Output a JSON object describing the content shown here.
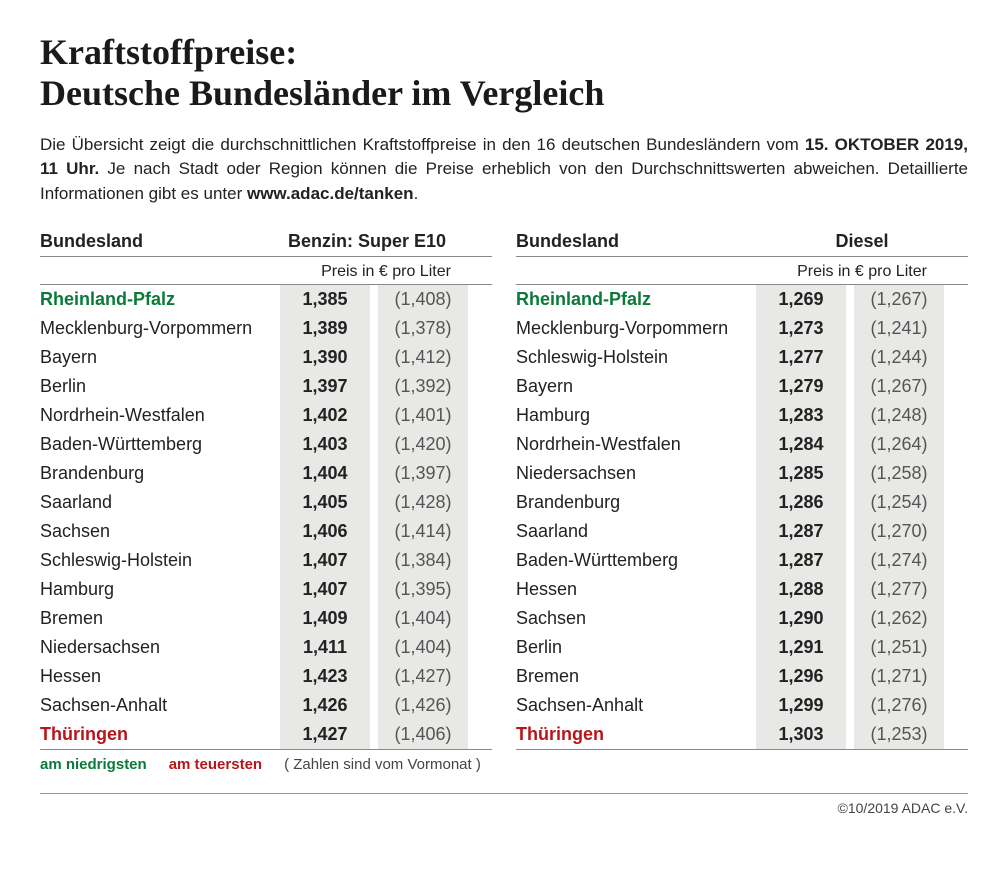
{
  "title_line1": "Kraftstoffpreise:",
  "title_line2": "Deutsche Bundesländer im Vergleich",
  "intro_pre": "Die Übersicht zeigt die durchschnittlichen Kraftstoffpreise in den 16 deutschen Bundesländern vom ",
  "intro_date": "15. OKTOBER 2019, 11 Uhr.",
  "intro_post": " Je nach Stadt oder Region können die Preise erheblich von den Durchschnittswerten abweichen. Detaillierte Informationen gibt es unter ",
  "intro_url": "www.adac.de/tanken",
  "intro_end": ".",
  "col_state": "Bundesland",
  "sub_price": "Preis in € pro Liter",
  "legend_low": "am niedrigsten",
  "legend_high": "am teuersten",
  "legend_note": "( Zahlen sind vom Vormonat )",
  "copyright": "©10/2019 ADAC e.V.",
  "colors": {
    "lowest": "#0a7a3a",
    "highest": "#b8151a",
    "cell_bg": "#e8e9e6",
    "border": "#888888",
    "text": "#222222",
    "prev_text": "#555555"
  },
  "typography": {
    "title_fontsize": 36,
    "intro_fontsize": 17,
    "header_fontsize": 18,
    "row_fontsize": 18,
    "legend_fontsize": 15,
    "footer_fontsize": 14,
    "title_font": "serif",
    "body_font": "sans-serif"
  },
  "tables": [
    {
      "fuel_label": "Benzin:  Super E10",
      "fuel_align": "left",
      "rows": [
        {
          "state": "Rheinland-Pfalz",
          "price": "1,385",
          "prev": "(1,408)",
          "flag": "lowest"
        },
        {
          "state": "Mecklenburg-Vorpommern",
          "price": "1,389",
          "prev": "(1,378)"
        },
        {
          "state": "Bayern",
          "price": "1,390",
          "prev": "(1,412)"
        },
        {
          "state": "Berlin",
          "price": "1,397",
          "prev": "(1,392)"
        },
        {
          "state": "Nordrhein-Westfalen",
          "price": "1,402",
          "prev": "(1,401)"
        },
        {
          "state": "Baden-Württemberg",
          "price": "1,403",
          "prev": "(1,420)"
        },
        {
          "state": "Brandenburg",
          "price": "1,404",
          "prev": "(1,397)"
        },
        {
          "state": "Saarland",
          "price": "1,405",
          "prev": "(1,428)"
        },
        {
          "state": "Sachsen",
          "price": "1,406",
          "prev": "(1,414)"
        },
        {
          "state": "Schleswig-Holstein",
          "price": "1,407",
          "prev": "(1,384)"
        },
        {
          "state": "Hamburg",
          "price": "1,407",
          "prev": "(1,395)"
        },
        {
          "state": "Bremen",
          "price": "1,409",
          "prev": "(1,404)"
        },
        {
          "state": "Niedersachsen",
          "price": "1,411",
          "prev": "(1,404)"
        },
        {
          "state": "Hessen",
          "price": "1,423",
          "prev": "(1,427)"
        },
        {
          "state": "Sachsen-Anhalt",
          "price": "1,426",
          "prev": "(1,426)"
        },
        {
          "state": "Thüringen",
          "price": "1,427",
          "prev": "(1,406)",
          "flag": "highest"
        }
      ]
    },
    {
      "fuel_label": "Diesel",
      "fuel_align": "center",
      "rows": [
        {
          "state": "Rheinland-Pfalz",
          "price": "1,269",
          "prev": "(1,267)",
          "flag": "lowest"
        },
        {
          "state": "Mecklenburg-Vorpommern",
          "price": "1,273",
          "prev": "(1,241)"
        },
        {
          "state": "Schleswig-Holstein",
          "price": "1,277",
          "prev": "(1,244)"
        },
        {
          "state": "Bayern",
          "price": "1,279",
          "prev": "(1,267)"
        },
        {
          "state": "Hamburg",
          "price": "1,283",
          "prev": "(1,248)"
        },
        {
          "state": "Nordrhein-Westfalen",
          "price": "1,284",
          "prev": "(1,264)"
        },
        {
          "state": "Niedersachsen",
          "price": "1,285",
          "prev": "(1,258)"
        },
        {
          "state": "Brandenburg",
          "price": "1,286",
          "prev": "(1,254)"
        },
        {
          "state": "Saarland",
          "price": "1,287",
          "prev": "(1,270)"
        },
        {
          "state": "Baden-Württemberg",
          "price": "1,287",
          "prev": "(1,274)"
        },
        {
          "state": "Hessen",
          "price": "1,288",
          "prev": "(1,277)"
        },
        {
          "state": "Sachsen",
          "price": "1,290",
          "prev": "(1,262)"
        },
        {
          "state": "Berlin",
          "price": "1,291",
          "prev": "(1,251)"
        },
        {
          "state": "Bremen",
          "price": "1,296",
          "prev": "(1,271)"
        },
        {
          "state": "Sachsen-Anhalt",
          "price": "1,299",
          "prev": "(1,276)"
        },
        {
          "state": "Thüringen",
          "price": "1,303",
          "prev": "(1,253)",
          "flag": "highest"
        }
      ]
    }
  ]
}
